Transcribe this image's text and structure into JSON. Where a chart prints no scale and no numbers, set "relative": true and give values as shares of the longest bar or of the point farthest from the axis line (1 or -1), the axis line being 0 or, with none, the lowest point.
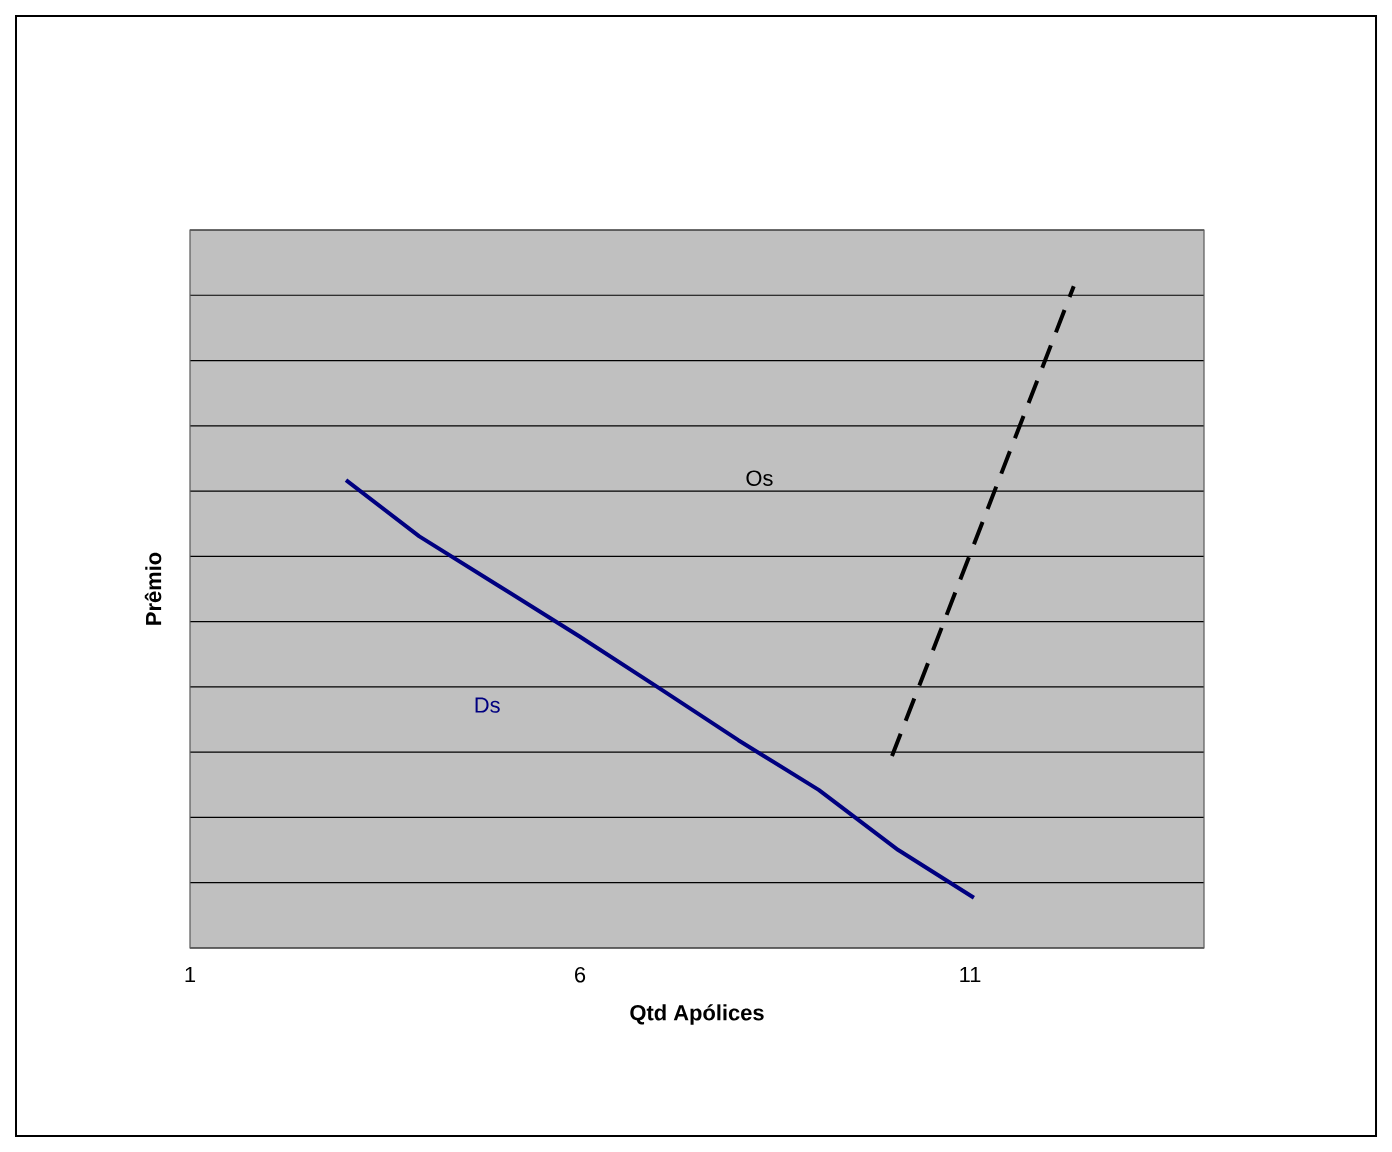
{
  "chart_data": {
    "type": "line",
    "relative": true,
    "xlabel": "Qtd Apólices",
    "ylabel": "Prêmio",
    "xlim": [
      1,
      14
    ],
    "xticks": [
      1,
      6,
      11
    ],
    "tick_labels": "x",
    "grid": "y",
    "marker": "none",
    "series": [
      {
        "name": "Ds",
        "color": "#000080",
        "line_style": "solid",
        "x": [
          3.0,
          3.94,
          4.96,
          5.99,
          7.01,
          8.03,
          9.06,
          10.08,
          11.05
        ],
        "values": [
          0.707,
          0.622,
          0.547,
          0.471,
          0.393,
          0.314,
          0.239,
          0.148,
          0.076
        ]
      },
      {
        "name": "Os",
        "color": "#000000",
        "line_style": "dashed",
        "x": [
          10.0,
          12.33
        ],
        "values": [
          0.29,
          1.0
        ]
      }
    ]
  }
}
